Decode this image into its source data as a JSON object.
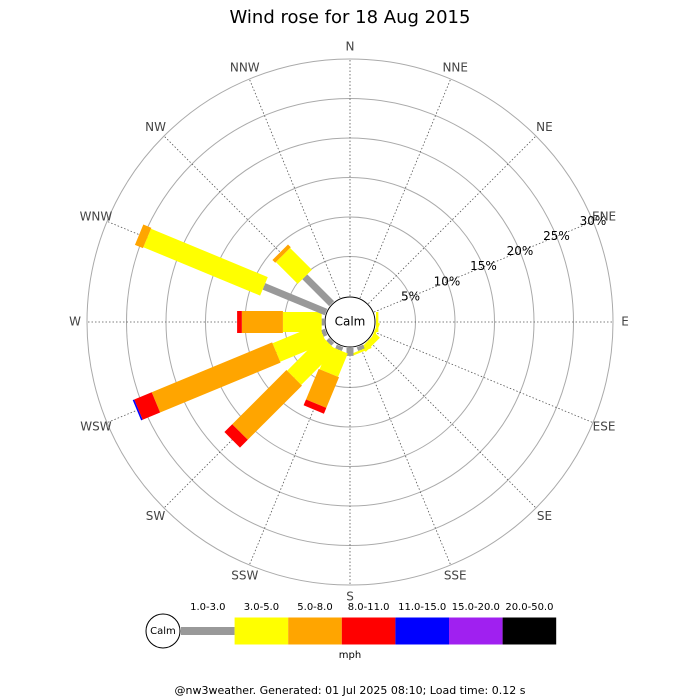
{
  "chart_data": {
    "type": "windrose",
    "title": "Wind rose for 18 Aug 2015",
    "categories": [
      "N",
      "NNE",
      "NE",
      "ENE",
      "E",
      "ESE",
      "SE",
      "SSE",
      "S",
      "SSW",
      "SW",
      "WSW",
      "W",
      "WNW",
      "NW",
      "NNW"
    ],
    "calm_label": "Calm",
    "unit": "mph",
    "rlim": [
      0,
      30
    ],
    "rticks": [
      {
        "value": 5,
        "label": "5%"
      },
      {
        "value": 10,
        "label": "10%"
      },
      {
        "value": 15,
        "label": "15%"
      },
      {
        "value": 20,
        "label": "20%"
      },
      {
        "value": 25,
        "label": "25%"
      },
      {
        "value": 30,
        "label": "30%"
      }
    ],
    "series": [
      {
        "name": "1.0-3.0",
        "color": "#999999",
        "values": [
          0,
          0,
          0,
          0,
          0,
          0,
          0,
          0.5,
          1,
          0.5,
          0.5,
          0.5,
          0.3,
          8.5,
          4.8,
          0
        ]
      },
      {
        "name": "3.0-5.0",
        "color": "#ffff00",
        "values": [
          0,
          0,
          0,
          0,
          0.3,
          0.3,
          0.8,
          0.3,
          0,
          3.2,
          6.2,
          6.3,
          4.9,
          16,
          3.9,
          0
        ]
      },
      {
        "name": "5.0-8.0",
        "color": "#ffa500",
        "values": [
          0,
          0,
          0,
          0,
          0,
          0,
          0,
          0,
          0,
          4.2,
          9.7,
          16.5,
          5.2,
          1.1,
          0.5,
          0
        ]
      },
      {
        "name": "8.0-11.0",
        "color": "#ff0000",
        "values": [
          0,
          0,
          0,
          0,
          0,
          0,
          0,
          0,
          0,
          0.8,
          1.4,
          2.4,
          0.6,
          0,
          0,
          0
        ]
      },
      {
        "name": "11.0-15.0",
        "color": "#0000ff",
        "values": [
          0,
          0,
          0,
          0,
          0,
          0,
          0,
          0,
          0,
          0,
          0,
          0.2,
          0,
          0,
          0,
          0
        ]
      },
      {
        "name": "15.0-20.0",
        "color": "#a020f0",
        "values": [
          0,
          0,
          0,
          0,
          0,
          0,
          0,
          0,
          0,
          0,
          0,
          0,
          0,
          0,
          0,
          0
        ]
      },
      {
        "name": "20.0-50.0",
        "color": "#000000",
        "values": [
          0,
          0,
          0,
          0,
          0,
          0,
          0,
          0,
          0,
          0,
          0,
          0,
          0,
          0,
          0,
          0
        ]
      }
    ],
    "footer": "@nw3weather. Generated: 01 Jul 2025 08:10; Load time: 0.12 s"
  }
}
